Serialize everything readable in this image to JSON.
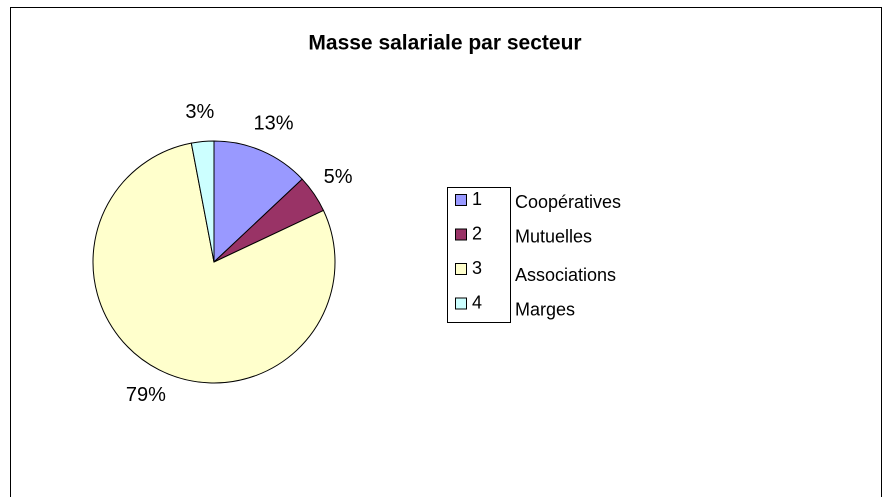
{
  "chart_data": {
    "type": "pie",
    "title": "Masse salariale par secteur",
    "categories": [
      "1",
      "2",
      "3",
      "4"
    ],
    "values": [
      13,
      5,
      79,
      3
    ],
    "value_labels": [
      "13%",
      "5%",
      "79%",
      "3%"
    ],
    "colors": [
      "#9999ff",
      "#993366",
      "#ffffcc",
      "#ccffff"
    ],
    "annotations": [
      "Coopératives",
      "Mutuelles",
      "Associations",
      "Marges"
    ],
    "legend": "right"
  }
}
